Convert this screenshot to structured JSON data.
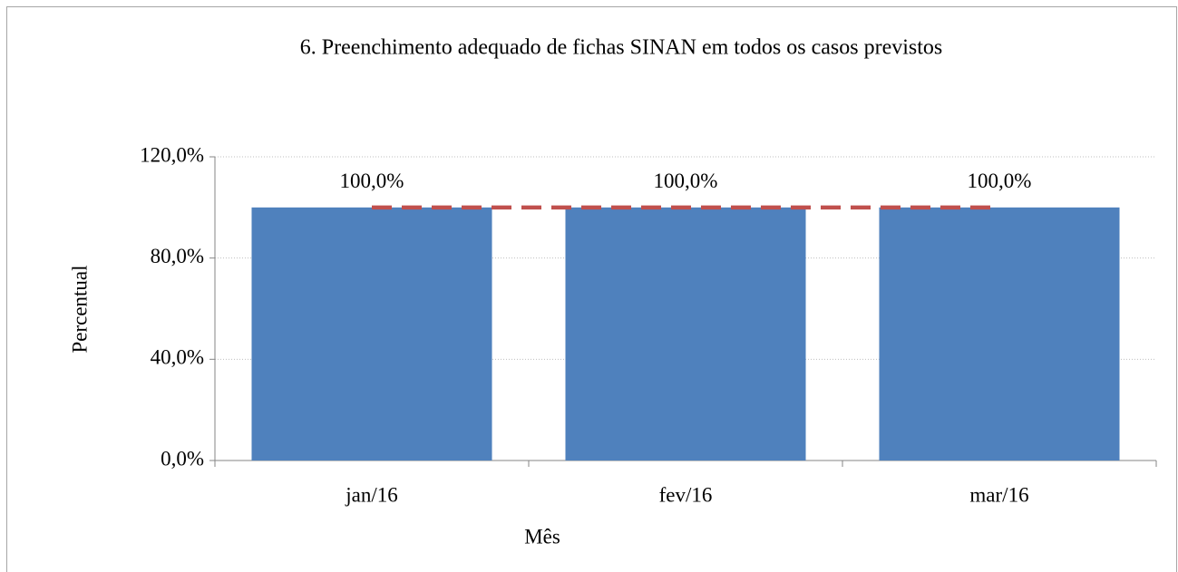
{
  "chart_data": {
    "type": "bar",
    "title": "6. Preenchimento adequado de fichas SINAN em todos os casos previstos",
    "x_label": "Mês",
    "y_label": "Percentual",
    "categories": [
      "jan/16",
      "fev/16",
      "mar/16"
    ],
    "series": [
      {
        "type": "bar",
        "color": "#4f81bd",
        "values": [
          100,
          100,
          100
        ],
        "value_labels": [
          "100,0%",
          "100,0%",
          "100,0%"
        ]
      },
      {
        "type": "line",
        "color": "#c0504d",
        "dashed": true,
        "values": [
          100,
          100,
          100
        ]
      }
    ],
    "ylim": [
      0,
      120
    ],
    "yticks": [
      {
        "value": 0,
        "label": "0,0%"
      },
      {
        "value": 40,
        "label": "40,0%"
      },
      {
        "value": 80,
        "label": "80,0%"
      },
      {
        "value": 120,
        "label": "120,0%"
      }
    ],
    "grid": true
  }
}
